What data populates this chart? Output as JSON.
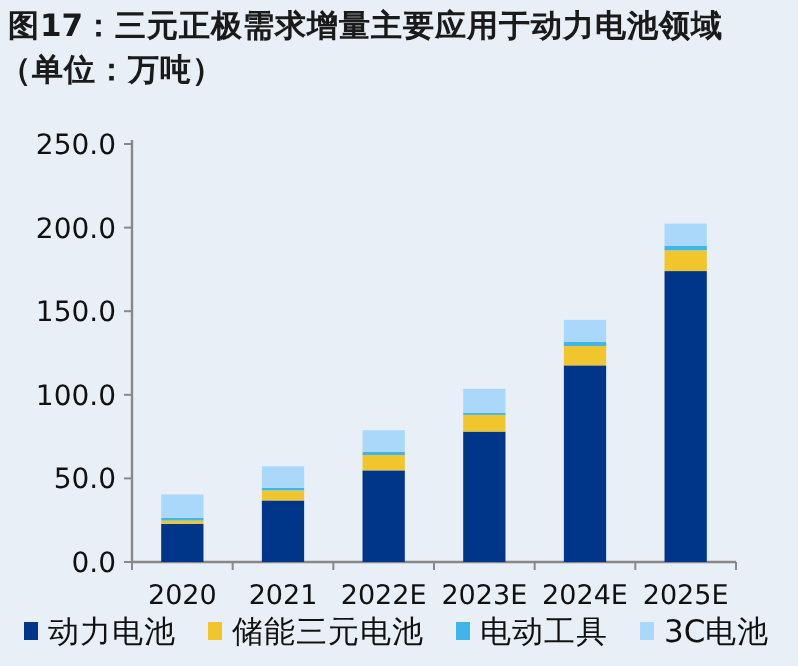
{
  "chart_data": {
    "type": "bar",
    "stacked": true,
    "title": "图17：三元正极需求增量主要应用于动力电池领域",
    "subtitle": "（单位：万吨）",
    "categories": [
      "2020",
      "2021",
      "2022E",
      "2023E",
      "2024E",
      "2025E"
    ],
    "series": [
      {
        "name": "动力电池",
        "color": "#00368a",
        "values": [
          22.8,
          36.8,
          54.8,
          78,
          117.6,
          174
        ]
      },
      {
        "name": "储能三元电池",
        "color": "#f0c62c",
        "values": [
          2,
          6,
          9.2,
          10,
          11.6,
          12.4
        ]
      },
      {
        "name": "电动工具",
        "color": "#3fb6ea",
        "values": [
          1.6,
          1.6,
          2,
          1.2,
          2.4,
          2.8
        ]
      },
      {
        "name": "3C电池",
        "color": "#a9d8fb",
        "values": [
          14,
          12.8,
          12.8,
          14.4,
          13.2,
          13.2
        ]
      }
    ],
    "ylim": [
      0,
      250
    ],
    "yticks": [
      {
        "value": 0,
        "label": "0.0"
      },
      {
        "value": 50,
        "label": "50.0"
      },
      {
        "value": 100,
        "label": "100.0"
      },
      {
        "value": 150,
        "label": "150.0"
      },
      {
        "value": 200,
        "label": "200.0"
      },
      {
        "value": 250,
        "label": "250.0"
      }
    ],
    "legend": "bottom"
  }
}
